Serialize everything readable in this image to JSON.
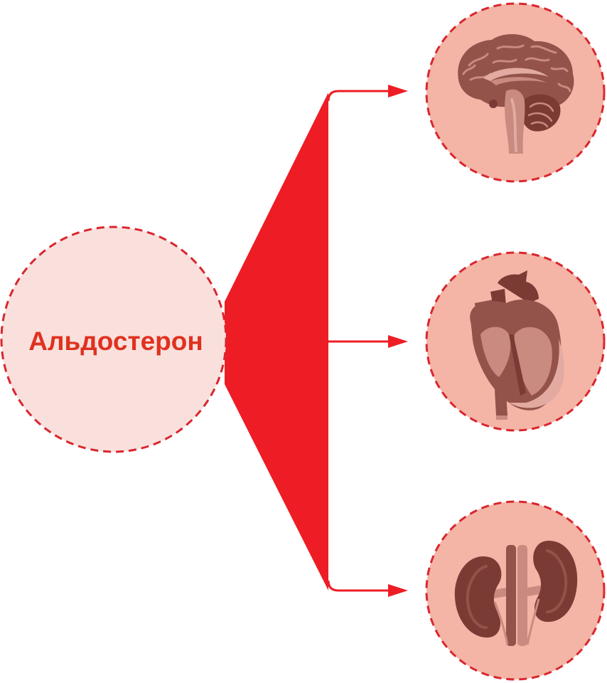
{
  "source": {
    "label": "Альдостерон"
  },
  "targets": [
    {
      "organ": "brain",
      "icon": "brain-icon"
    },
    {
      "organ": "heart",
      "icon": "heart-icon"
    },
    {
      "organ": "kidneys",
      "icon": "kidneys-icon"
    }
  ],
  "colors": {
    "accent": "#ee1c25",
    "dashed_border": "#d9262e",
    "source_fill": "#f9e0dd",
    "target_fill": "#f4b4a6",
    "label": "#e0311f",
    "organ_dark": "#7a3b34",
    "organ_mid": "#93524a",
    "organ_light": "#c98a80",
    "organ_pale": "#e2aaa0"
  }
}
